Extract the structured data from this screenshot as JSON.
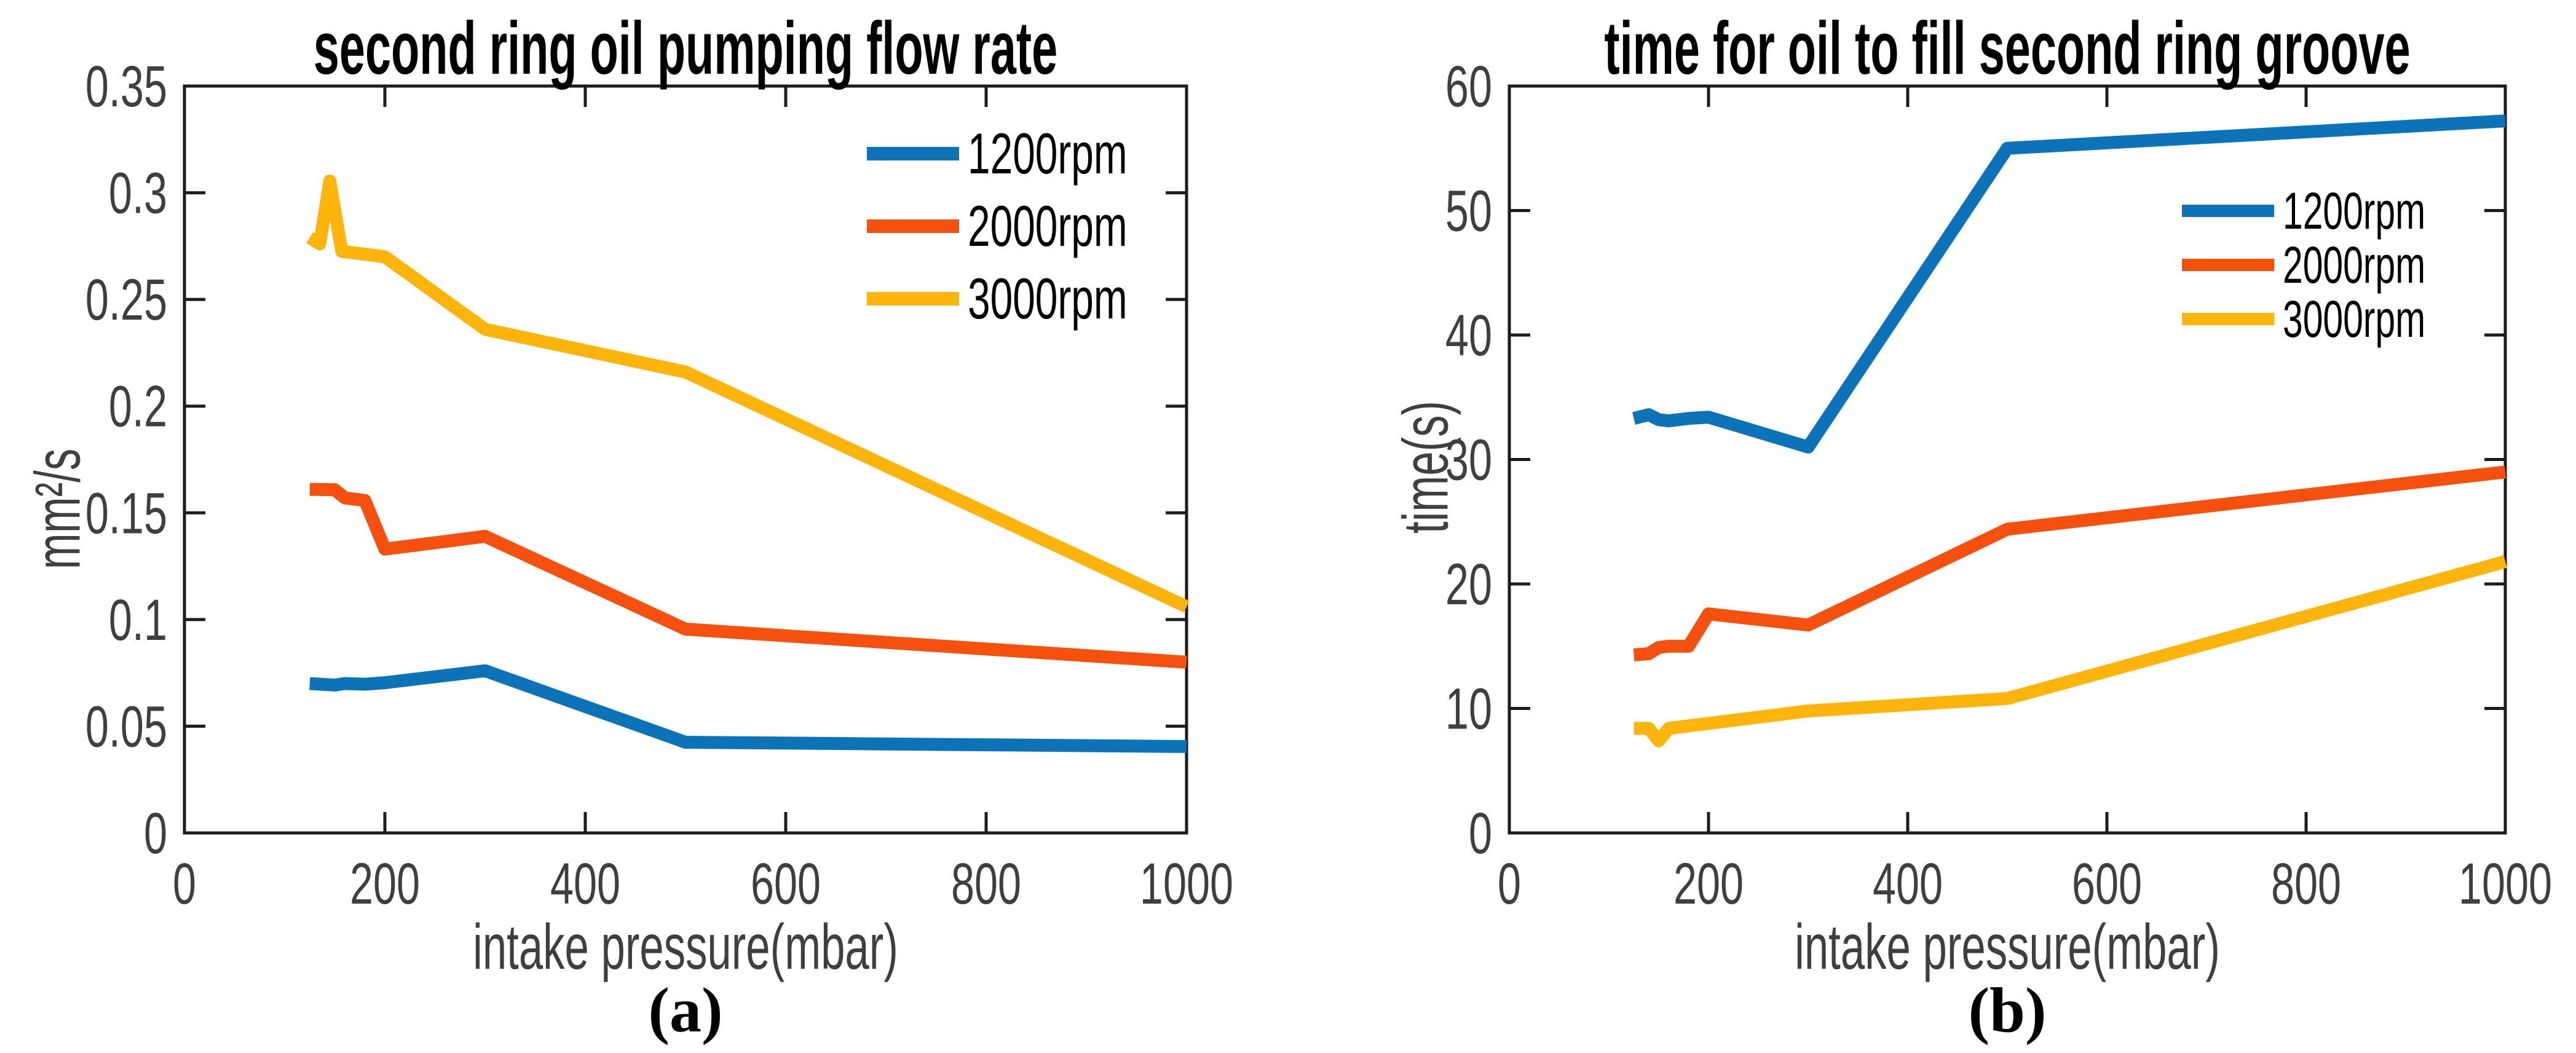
{
  "figure": {
    "background": "#ffffff",
    "axis_color": "#1c1c1c",
    "tick_label_color": "#3f3f3f",
    "captions": {
      "a": "(a)",
      "b": "(b)"
    }
  },
  "chart_data": [
    {
      "type": "line",
      "title": "second ring oil pumping flow rate",
      "xlabel": "intake pressure(mbar)",
      "ylabel": "mm²/s",
      "caption": "(a)",
      "xlim": [
        0,
        1000
      ],
      "ylim": [
        0,
        0.35
      ],
      "x_ticks": [
        0,
        200,
        400,
        600,
        800,
        1000
      ],
      "x_tick_labels": [
        "0",
        "200",
        "400",
        "600",
        "800",
        "1000"
      ],
      "y_ticks": [
        0,
        0.05,
        0.1,
        0.15,
        0.2,
        0.25,
        0.3,
        0.35
      ],
      "y_tick_labels": [
        "0",
        "0.05",
        "0.1",
        "0.15",
        "0.2",
        "0.25",
        "0.3",
        "0.35"
      ],
      "grid": false,
      "box": true,
      "legend_position": "upper right inside, no box",
      "series": [
        {
          "name": "1200rpm",
          "color": "#0d73b9",
          "x": [
            125,
            150,
            160,
            180,
            200,
            300,
            500,
            1000
          ],
          "y": [
            0.07,
            0.0693,
            0.07,
            0.0697,
            0.0704,
            0.076,
            0.0425,
            0.0405
          ]
        },
        {
          "name": "2000rpm",
          "color": "#f5500e",
          "x": [
            125,
            150,
            160,
            180,
            200,
            300,
            500,
            1000
          ],
          "y": [
            0.161,
            0.1608,
            0.157,
            0.1558,
            0.133,
            0.139,
            0.0955,
            0.08
          ]
        },
        {
          "name": "3000rpm",
          "color": "#feb40a",
          "x": [
            125,
            135,
            145,
            157,
            170,
            200,
            300,
            500,
            1000
          ],
          "y": [
            0.279,
            0.276,
            0.3055,
            0.2725,
            0.2718,
            0.27,
            0.236,
            0.216,
            0.106
          ]
        }
      ]
    },
    {
      "type": "line",
      "title": "time for oil to fill second ring groove",
      "xlabel": "intake pressure(mbar)",
      "ylabel": "time(s)",
      "caption": "(b)",
      "xlim": [
        0,
        1000
      ],
      "ylim": [
        0,
        60
      ],
      "x_ticks": [
        0,
        200,
        400,
        600,
        800,
        1000
      ],
      "x_tick_labels": [
        "0",
        "200",
        "400",
        "600",
        "800",
        "1000"
      ],
      "y_ticks": [
        0,
        10,
        20,
        30,
        40,
        50,
        60
      ],
      "y_tick_labels": [
        "0",
        "10",
        "20",
        "30",
        "40",
        "50",
        "60"
      ],
      "grid": false,
      "box": true,
      "legend_position": "middle right inside, no box",
      "series": [
        {
          "name": "1200rpm",
          "color": "#0d73b9",
          "x": [
            125,
            140,
            150,
            160,
            180,
            200,
            300,
            500,
            1000
          ],
          "y": [
            33.3,
            33.6,
            33.2,
            33.1,
            33.3,
            33.4,
            31.0,
            55.0,
            57.2
          ]
        },
        {
          "name": "2000rpm",
          "color": "#f5500e",
          "x": [
            125,
            140,
            150,
            160,
            180,
            200,
            300,
            500,
            1000
          ],
          "y": [
            14.3,
            14.4,
            14.9,
            15.0,
            15.0,
            17.6,
            16.7,
            24.4,
            29.0
          ]
        },
        {
          "name": "3000rpm",
          "color": "#feb40a",
          "x": [
            125,
            140,
            150,
            160,
            180,
            200,
            300,
            500,
            1000
          ],
          "y": [
            8.4,
            8.4,
            7.4,
            8.4,
            8.6,
            8.8,
            9.8,
            10.8,
            21.8
          ]
        }
      ]
    }
  ]
}
